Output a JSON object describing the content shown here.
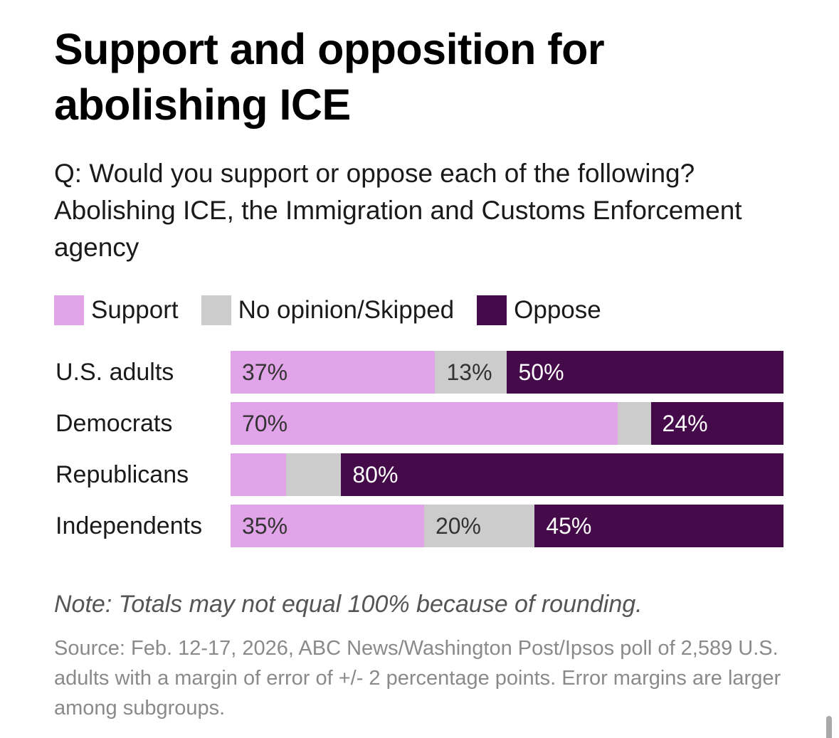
{
  "chart_data": {
    "type": "bar",
    "orientation": "horizontal",
    "stacked": true,
    "title": "Support and opposition for abolishing ICE",
    "subtitle": "Q: Would you support or oppose each of the following? Abolishing ICE, the Immigration and Customs Enforcement agency",
    "categories": [
      "U.S. adults",
      "Democrats",
      "Republicans",
      "Independents"
    ],
    "series": [
      {
        "name": "Support",
        "color": "#e2a4e9",
        "label_color": "#333333",
        "values": [
          37,
          70,
          10,
          35
        ],
        "labels": [
          "37%",
          "70%",
          "",
          "35%"
        ]
      },
      {
        "name": "No opinion/Skipped",
        "color": "#cccccc",
        "label_color": "#333333",
        "values": [
          13,
          6,
          10,
          20
        ],
        "labels": [
          "13%",
          "",
          "",
          "20%"
        ]
      },
      {
        "name": "Oppose",
        "color": "#440a4a",
        "label_color": "#ffffff",
        "values": [
          50,
          24,
          80,
          45
        ],
        "labels": [
          "50%",
          "24%",
          "80%",
          "45%"
        ]
      }
    ],
    "xlim": [
      0,
      100
    ],
    "legend_position": "top-left",
    "grid": false,
    "xlabel": "",
    "ylabel": ""
  },
  "note": "Note: Totals may not equal 100% because of rounding.",
  "source": "Source: Feb. 12-17, 2026, ABC News/Washington Post/Ipsos poll of 2,589 U.S. adults with a margin of error of +/- 2 percentage points. Error margins are larger among subgroups."
}
